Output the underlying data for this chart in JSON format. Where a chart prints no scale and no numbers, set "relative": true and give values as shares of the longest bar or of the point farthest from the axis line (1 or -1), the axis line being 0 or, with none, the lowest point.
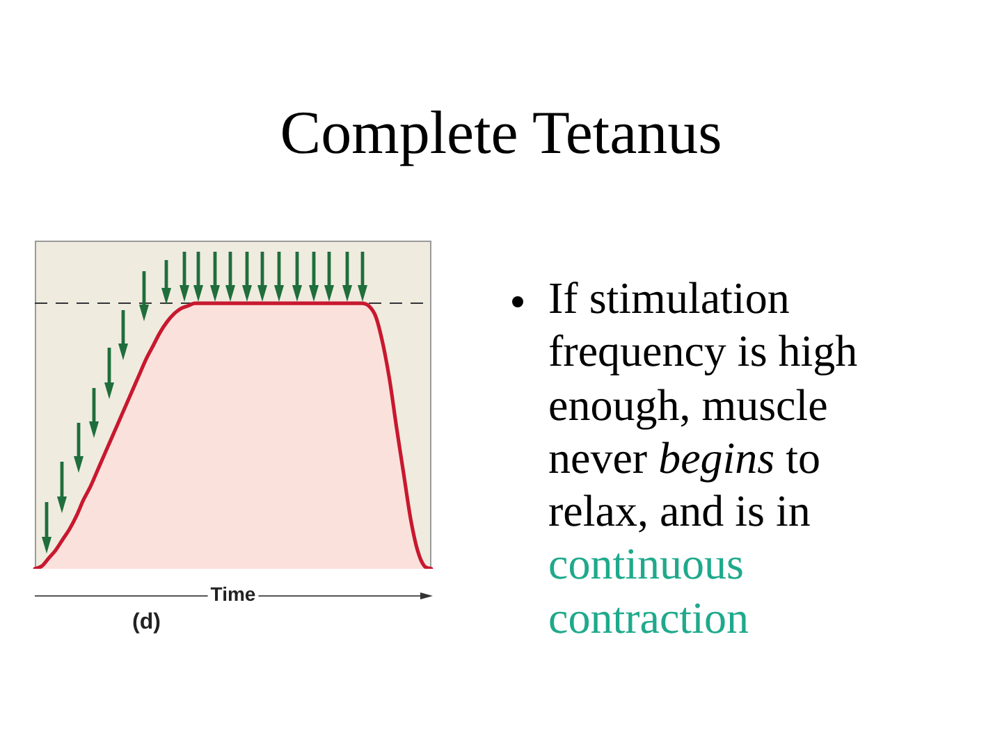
{
  "chart_data": {
    "type": "area",
    "title": "Complete Tetanus",
    "xlabel": "Time",
    "annotations": [
      "(d)",
      "If stimulation frequency is high enough, muscle",
      "never",
      "begins",
      "to",
      "relax, and is in",
      "continuous contraction"
    ],
    "relative": true,
    "categories": [
      null,
      null,
      null,
      null,
      null,
      null,
      null,
      null,
      null,
      null,
      null,
      null,
      null,
      null,
      null,
      null,
      null,
      null,
      null,
      null,
      null,
      null,
      null,
      null,
      null,
      null,
      null,
      null,
      null,
      null,
      null,
      null,
      null,
      null,
      null,
      null,
      null,
      null,
      null,
      null,
      null,
      null,
      null,
      null,
      null,
      null,
      null,
      null,
      null,
      null,
      null,
      null,
      null,
      null,
      null,
      null,
      null,
      null
    ],
    "series": [
      {
        "color": "#c8182f",
        "values": [
          0,
          0.01,
          0.04,
          0.07,
          0.11,
          0.15,
          0.2,
          0.26,
          0.31,
          0.37,
          0.43,
          0.49,
          0.55,
          0.61,
          0.67,
          0.73,
          0.79,
          0.84,
          0.89,
          0.93,
          0.96,
          0.98,
          0.99,
          1,
          1,
          1,
          1,
          1,
          1,
          1,
          1,
          1,
          1,
          1,
          1,
          1,
          1,
          1,
          1,
          1,
          1,
          1,
          1,
          1,
          1,
          1,
          1,
          1,
          0.99,
          0.95,
          0.85,
          0.71,
          0.53,
          0.36,
          0.19,
          0.07,
          0.01,
          0
        ]
      }
    ],
    "ref_lines": [
      {
        "axis": "y",
        "value": 1,
        "line_style": "dashed",
        "color": "#333333"
      }
    ]
  }
}
